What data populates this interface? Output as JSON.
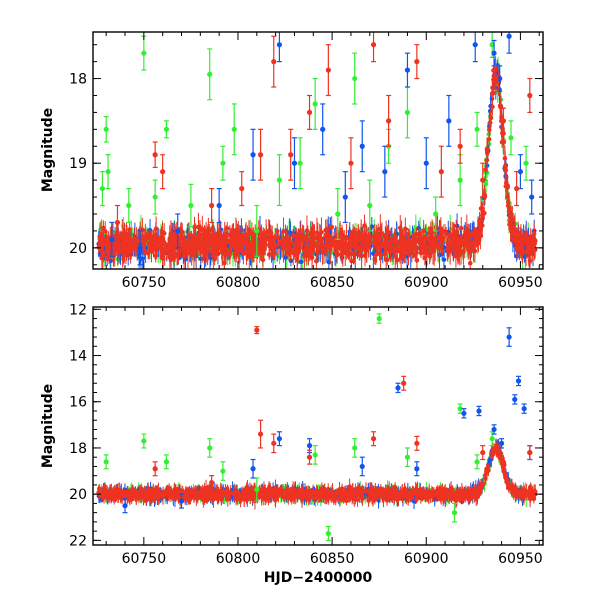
{
  "chart_data": [
    {
      "type": "scatter",
      "panel": "top",
      "ylabel": "Magnitude",
      "xlabel": "",
      "xlim": [
        60723,
        60962
      ],
      "ylim": [
        20.25,
        17.45
      ],
      "y_inverted": true,
      "xticks": [
        60750,
        60800,
        60850,
        60900,
        60950
      ],
      "xtick_labels": [
        "60750",
        "60800",
        "60850",
        "60900",
        "60950"
      ],
      "yticks": [
        18,
        19,
        20
      ],
      "ytick_labels": [
        "18",
        "19",
        "20"
      ],
      "series": [
        {
          "name": "green",
          "color": "#33ee33",
          "points": [
            {
              "x": 60730,
              "y": 18.6,
              "err": 0.15
            },
            {
              "x": 60731,
              "y": 19.1,
              "err": 0.2
            },
            {
              "x": 60728,
              "y": 19.3,
              "err": 0.2
            },
            {
              "x": 60742,
              "y": 19.5,
              "err": 0.2
            },
            {
              "x": 60750,
              "y": 17.7,
              "err": 0.2
            },
            {
              "x": 60756,
              "y": 19.4,
              "err": 0.2
            },
            {
              "x": 60762,
              "y": 18.6,
              "err": 0.1
            },
            {
              "x": 60775,
              "y": 19.5,
              "err": 0.25
            },
            {
              "x": 60785,
              "y": 17.95,
              "err": 0.3
            },
            {
              "x": 60792,
              "y": 19.0,
              "err": 0.2
            },
            {
              "x": 60798,
              "y": 18.6,
              "err": 0.3
            },
            {
              "x": 60810,
              "y": 19.8,
              "err": 0.3
            },
            {
              "x": 60822,
              "y": 19.2,
              "err": 0.3
            },
            {
              "x": 60833,
              "y": 19.0,
              "err": 0.3
            },
            {
              "x": 60841,
              "y": 18.3,
              "err": 0.3
            },
            {
              "x": 60853,
              "y": 19.6,
              "err": 0.3
            },
            {
              "x": 60862,
              "y": 18.0,
              "err": 0.3
            },
            {
              "x": 60870,
              "y": 19.5,
              "err": 0.3
            },
            {
              "x": 60880,
              "y": 18.8,
              "err": 0.2
            },
            {
              "x": 60890,
              "y": 18.4,
              "err": 0.3
            },
            {
              "x": 60905,
              "y": 19.6,
              "err": 0.2
            },
            {
              "x": 60918,
              "y": 19.2,
              "err": 0.3
            },
            {
              "x": 60927,
              "y": 18.6,
              "err": 0.2
            },
            {
              "x": 60935,
              "y": 17.6,
              "err": 0.15
            },
            {
              "x": 60945,
              "y": 18.7,
              "err": 0.2
            },
            {
              "x": 60953,
              "y": 19.0,
              "err": 0.2
            }
          ]
        },
        {
          "name": "blue",
          "color": "#1155ee",
          "points": [
            {
              "x": 60733,
              "y": 19.9,
              "err": 0.2
            },
            {
              "x": 60748,
              "y": 20.0,
              "err": 0.2
            },
            {
              "x": 60768,
              "y": 19.8,
              "err": 0.2
            },
            {
              "x": 60790,
              "y": 19.5,
              "err": 0.2
            },
            {
              "x": 60808,
              "y": 18.9,
              "err": 0.3
            },
            {
              "x": 60822,
              "y": 17.6,
              "err": 0.2
            },
            {
              "x": 60830,
              "y": 19.0,
              "err": 0.3
            },
            {
              "x": 60845,
              "y": 18.6,
              "err": 0.3
            },
            {
              "x": 60857,
              "y": 19.4,
              "err": 0.3
            },
            {
              "x": 60866,
              "y": 18.8,
              "err": 0.3
            },
            {
              "x": 60878,
              "y": 19.1,
              "err": 0.3
            },
            {
              "x": 60890,
              "y": 17.9,
              "err": 0.2
            },
            {
              "x": 60900,
              "y": 19.0,
              "err": 0.3
            },
            {
              "x": 60912,
              "y": 18.5,
              "err": 0.3
            },
            {
              "x": 60926,
              "y": 17.6,
              "err": 0.2
            },
            {
              "x": 60936,
              "y": 17.7,
              "err": 0.15
            },
            {
              "x": 60939,
              "y": 18.0,
              "err": 0.15
            },
            {
              "x": 60944,
              "y": 17.5,
              "err": 0.2
            },
            {
              "x": 60950,
              "y": 19.1,
              "err": 0.2
            },
            {
              "x": 60956,
              "y": 19.4,
              "err": 0.2
            }
          ]
        },
        {
          "name": "red",
          "color": "#ee3322",
          "points": [
            {
              "x": 60736,
              "y": 19.7,
              "err": 0.2
            },
            {
              "x": 60756,
              "y": 18.9,
              "err": 0.15
            },
            {
              "x": 60760,
              "y": 19.1,
              "err": 0.2
            },
            {
              "x": 60786,
              "y": 19.5,
              "err": 0.2
            },
            {
              "x": 60802,
              "y": 19.3,
              "err": 0.2
            },
            {
              "x": 60812,
              "y": 18.9,
              "err": 0.3
            },
            {
              "x": 60819,
              "y": 17.8,
              "err": 0.3
            },
            {
              "x": 60828,
              "y": 18.9,
              "err": 0.3
            },
            {
              "x": 60838,
              "y": 18.4,
              "err": 0.2
            },
            {
              "x": 60848,
              "y": 17.9,
              "err": 0.3
            },
            {
              "x": 60860,
              "y": 19.0,
              "err": 0.3
            },
            {
              "x": 60872,
              "y": 17.6,
              "err": 0.2
            },
            {
              "x": 60880,
              "y": 18.5,
              "err": 0.3
            },
            {
              "x": 60895,
              "y": 17.8,
              "err": 0.2
            },
            {
              "x": 60908,
              "y": 19.1,
              "err": 0.3
            },
            {
              "x": 60918,
              "y": 18.8,
              "err": 0.2
            },
            {
              "x": 60930,
              "y": 19.2,
              "err": 0.2
            },
            {
              "x": 60937,
              "y": 18.0,
              "err": 0.15
            },
            {
              "x": 60941,
              "y": 18.5,
              "err": 0.15
            },
            {
              "x": 60948,
              "y": 19.3,
              "err": 0.2
            },
            {
              "x": 60955,
              "y": 18.2,
              "err": 0.2
            }
          ]
        }
      ]
    },
    {
      "type": "scatter",
      "panel": "bottom",
      "ylabel": "Magnitude",
      "xlabel": "HJD−2400000",
      "xlim": [
        60723,
        60962
      ],
      "ylim": [
        22.2,
        11.9
      ],
      "y_inverted": true,
      "xticks": [
        60750,
        60800,
        60850,
        60900,
        60950
      ],
      "xtick_labels": [
        "60750",
        "60800",
        "60850",
        "60900",
        "60950"
      ],
      "yticks": [
        12,
        14,
        16,
        18,
        20,
        22
      ],
      "ytick_labels": [
        "12",
        "14",
        "16",
        "18",
        "20",
        "22"
      ],
      "series": [
        {
          "name": "green",
          "color": "#33ee33",
          "points": [
            {
              "x": 60730,
              "y": 18.6,
              "err": 0.3
            },
            {
              "x": 60750,
              "y": 17.7,
              "err": 0.3
            },
            {
              "x": 60762,
              "y": 18.6,
              "err": 0.3
            },
            {
              "x": 60785,
              "y": 18.0,
              "err": 0.4
            },
            {
              "x": 60792,
              "y": 19.0,
              "err": 0.4
            },
            {
              "x": 60810,
              "y": 19.8,
              "err": 0.5
            },
            {
              "x": 60841,
              "y": 18.3,
              "err": 0.4
            },
            {
              "x": 60848,
              "y": 21.7,
              "err": 0.3
            },
            {
              "x": 60862,
              "y": 18.0,
              "err": 0.4
            },
            {
              "x": 60875,
              "y": 12.4,
              "err": 0.2
            },
            {
              "x": 60890,
              "y": 18.4,
              "err": 0.4
            },
            {
              "x": 60918,
              "y": 16.3,
              "err": 0.2
            },
            {
              "x": 60927,
              "y": 18.6,
              "err": 0.3
            },
            {
              "x": 60935,
              "y": 17.6,
              "err": 0.3
            },
            {
              "x": 60915,
              "y": 20.8,
              "err": 0.4
            }
          ]
        },
        {
          "name": "blue",
          "color": "#1155ee",
          "points": [
            {
              "x": 60740,
              "y": 20.5,
              "err": 0.3
            },
            {
              "x": 60770,
              "y": 20.3,
              "err": 0.3
            },
            {
              "x": 60808,
              "y": 18.9,
              "err": 0.4
            },
            {
              "x": 60822,
              "y": 17.6,
              "err": 0.3
            },
            {
              "x": 60838,
              "y": 17.9,
              "err": 0.3
            },
            {
              "x": 60866,
              "y": 18.8,
              "err": 0.4
            },
            {
              "x": 60885,
              "y": 15.4,
              "err": 0.2
            },
            {
              "x": 60895,
              "y": 18.9,
              "err": 0.3
            },
            {
              "x": 60920,
              "y": 16.5,
              "err": 0.2
            },
            {
              "x": 60928,
              "y": 16.4,
              "err": 0.2
            },
            {
              "x": 60936,
              "y": 17.2,
              "err": 0.2
            },
            {
              "x": 60940,
              "y": 17.8,
              "err": 0.2
            },
            {
              "x": 60944,
              "y": 13.2,
              "err": 0.4
            },
            {
              "x": 60947,
              "y": 15.9,
              "err": 0.2
            },
            {
              "x": 60949,
              "y": 15.1,
              "err": 0.2
            },
            {
              "x": 60952,
              "y": 16.3,
              "err": 0.2
            },
            {
              "x": 60955,
              "y": 18.2,
              "err": 0.3
            }
          ]
        },
        {
          "name": "red",
          "color": "#ee3322",
          "points": [
            {
              "x": 60756,
              "y": 18.9,
              "err": 0.3
            },
            {
              "x": 60786,
              "y": 19.5,
              "err": 0.3
            },
            {
              "x": 60810,
              "y": 12.9,
              "err": 0.15
            },
            {
              "x": 60812,
              "y": 17.4,
              "err": 0.6
            },
            {
              "x": 60819,
              "y": 17.8,
              "err": 0.4
            },
            {
              "x": 60838,
              "y": 18.4,
              "err": 0.3
            },
            {
              "x": 60872,
              "y": 17.6,
              "err": 0.3
            },
            {
              "x": 60888,
              "y": 15.2,
              "err": 0.3
            },
            {
              "x": 60895,
              "y": 17.8,
              "err": 0.3
            },
            {
              "x": 60930,
              "y": 18.2,
              "err": 0.3
            },
            {
              "x": 60955,
              "y": 18.2,
              "err": 0.3
            }
          ]
        }
      ]
    }
  ]
}
